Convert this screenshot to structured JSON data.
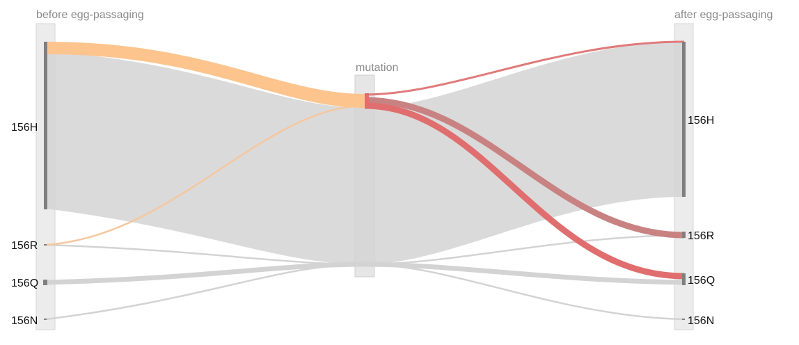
{
  "diagram": {
    "type": "sankey",
    "columns": {
      "before": "before egg-passaging",
      "mutation": "mutation",
      "after": "after egg-passaging"
    },
    "nodes": {
      "before": [
        "156H",
        "156R",
        "156Q",
        "156N"
      ],
      "after": [
        "156H",
        "156R",
        "156Q",
        "156N"
      ]
    },
    "flows": [
      {
        "id": "H-H",
        "from": "156H",
        "to": "156H",
        "via": "mutation",
        "kind": "unchanged"
      },
      {
        "id": "H-R",
        "from": "156H",
        "to": "156R",
        "via": "mutation",
        "kind": "mutated"
      },
      {
        "id": "H-Q",
        "from": "156H",
        "to": "156Q",
        "via": "mutation",
        "kind": "mutated"
      },
      {
        "id": "R-H",
        "from": "156R",
        "to": "156H",
        "via": "mutation",
        "kind": "mutated"
      },
      {
        "id": "R-R",
        "from": "156R",
        "to": "156R",
        "via": "mutation",
        "kind": "unchanged"
      },
      {
        "id": "Q-Q",
        "from": "156Q",
        "to": "156Q",
        "via": "mutation",
        "kind": "unchanged"
      },
      {
        "id": "N-N",
        "from": "156N",
        "to": "156N",
        "via": "mutation",
        "kind": "unchanged"
      }
    ],
    "colors": {
      "unchanged": "#d3d3d3",
      "from_highlight": "#fdc48e",
      "to_highlight": "#e06e6e",
      "node_bar": "#7f7f7f",
      "column_box": "#ececec"
    }
  }
}
